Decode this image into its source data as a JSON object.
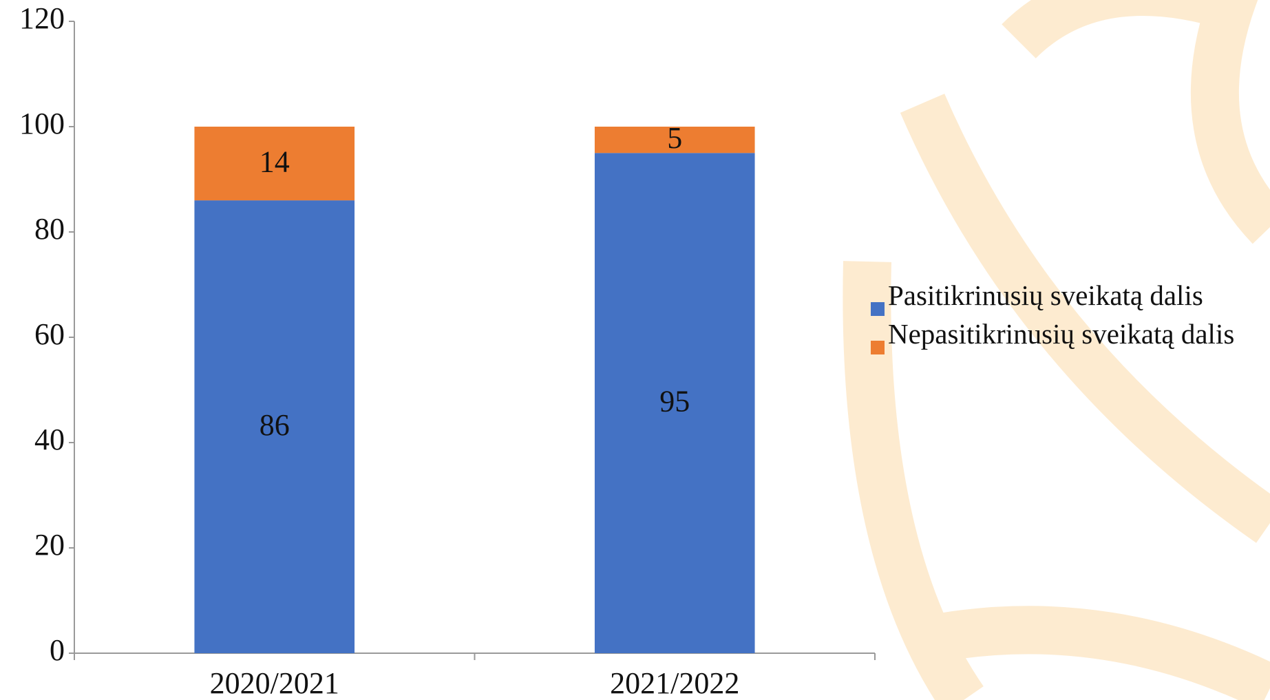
{
  "chart_data": {
    "type": "stacked_bar",
    "categories": [
      "2020/2021",
      "2021/2022"
    ],
    "series": [
      {
        "name": "Pasitikrinusių sveikatą dalis",
        "color": "#4472c4",
        "values": [
          86,
          95
        ]
      },
      {
        "name": "Nepasitikrinusių sveikatą dalis",
        "color": "#ed7d31",
        "values": [
          14,
          5
        ]
      }
    ],
    "ylim": [
      0,
      120
    ],
    "yticks": [
      0,
      20,
      40,
      60,
      80,
      100,
      120
    ],
    "grid": false,
    "legend": "right"
  }
}
